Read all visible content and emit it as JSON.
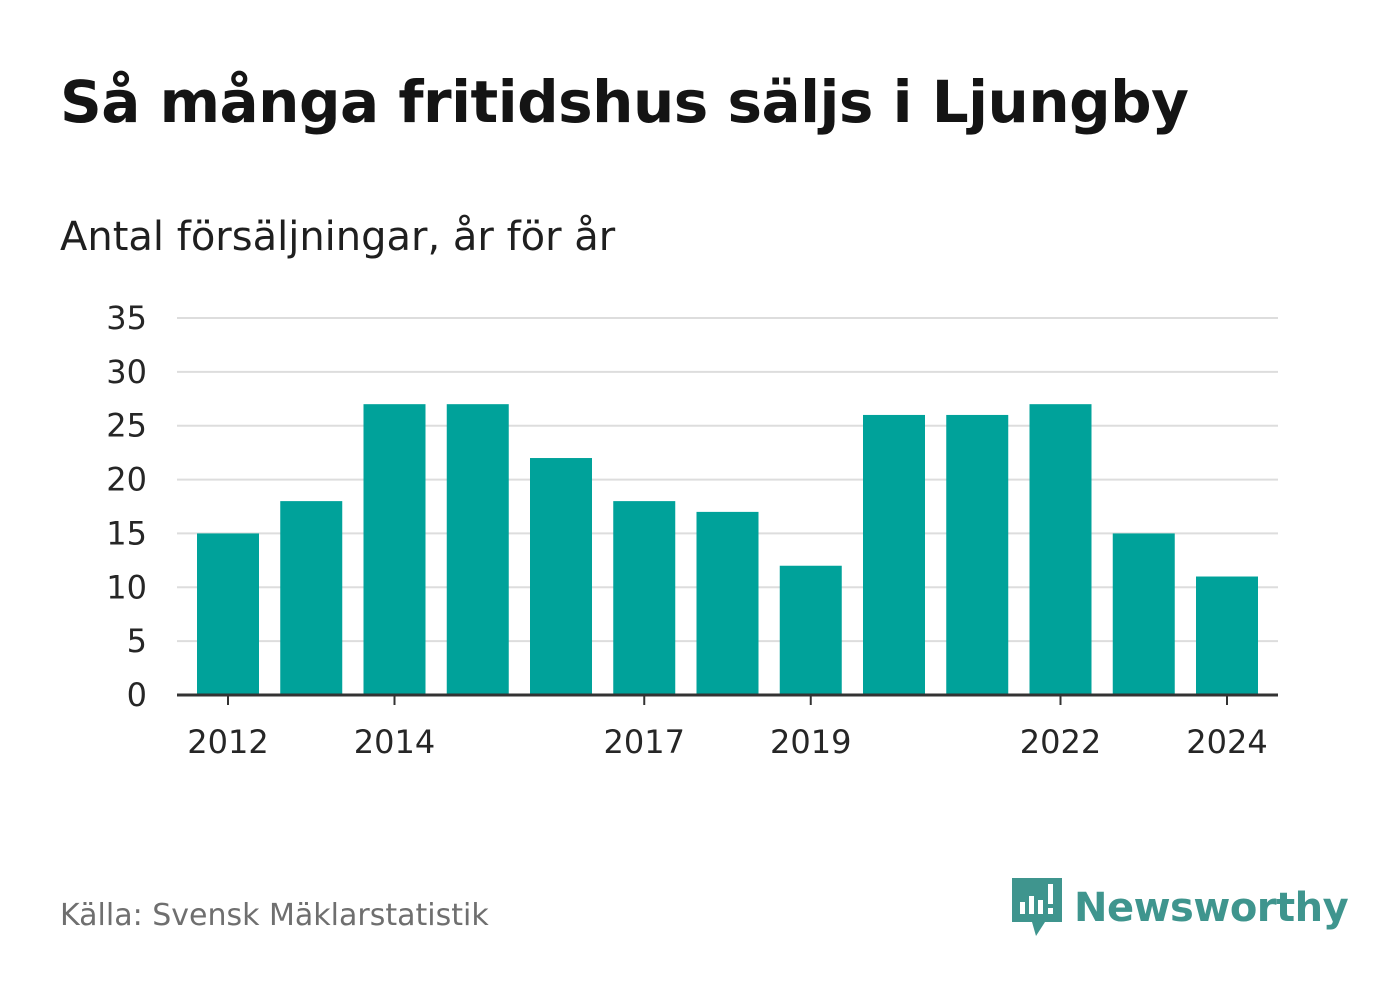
{
  "title": "Så många fritidshus säljs i Ljungby",
  "subtitle": "Antal försäljningar, år för år",
  "source": "Källa: Svensk Mäklarstatistik",
  "brand": "Newsworthy",
  "colors": {
    "bar": "#00a29a",
    "grid": "#dddddd",
    "axis": "#333333",
    "brand": "#3f958e"
  },
  "chart_data": {
    "type": "bar",
    "title": "Så många fritidshus säljs i Ljungby",
    "subtitle": "Antal försäljningar, år för år",
    "xlabel": "",
    "ylabel": "",
    "categories": [
      "2012",
      "2013",
      "2014",
      "2015",
      "2016",
      "2017",
      "2018",
      "2019",
      "2020",
      "2021",
      "2022",
      "2023",
      "2024"
    ],
    "x_tick_labels": [
      "2012",
      "2014",
      "2017",
      "2019",
      "2022",
      "2024"
    ],
    "values": [
      15,
      18,
      27,
      27,
      22,
      18,
      17,
      12,
      26,
      26,
      27,
      15,
      11
    ],
    "ylim": [
      0,
      35
    ],
    "y_ticks": [
      0,
      5,
      10,
      15,
      20,
      25,
      30,
      35
    ],
    "grid": true,
    "legend": "none"
  }
}
